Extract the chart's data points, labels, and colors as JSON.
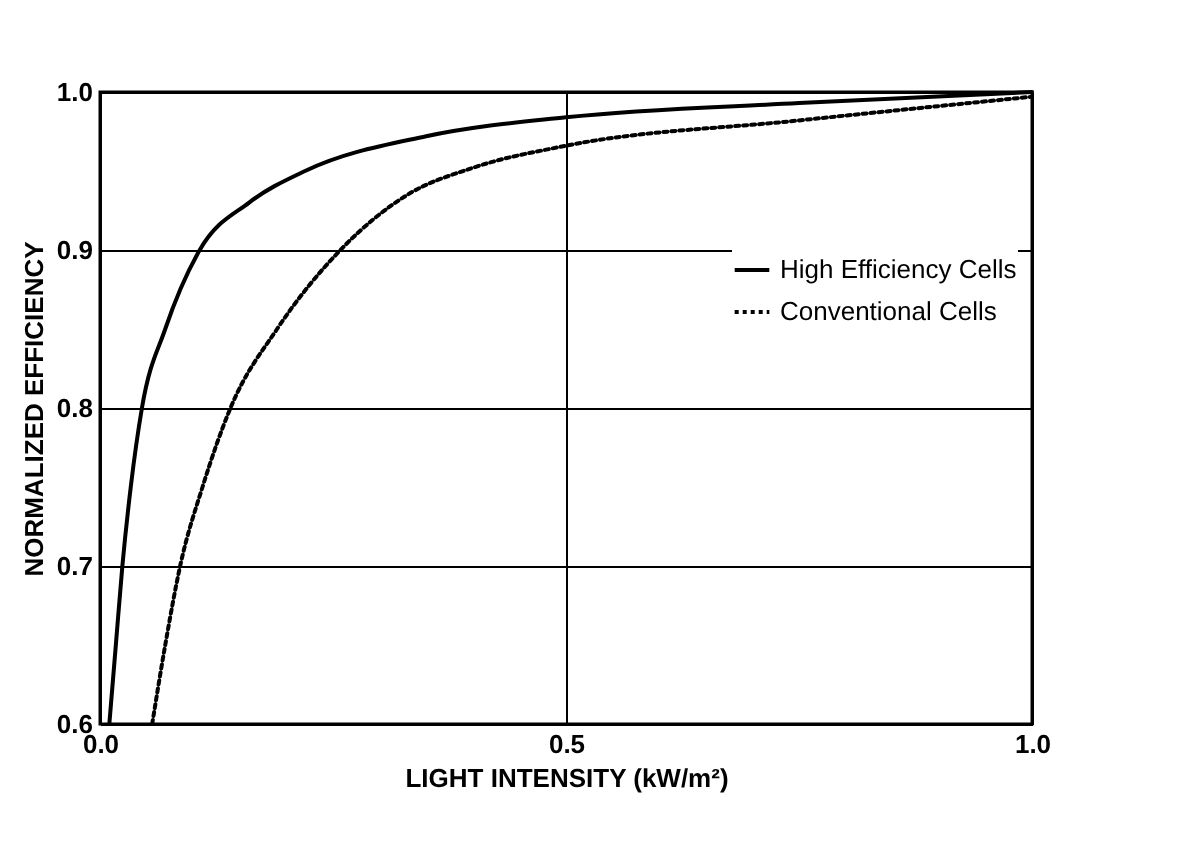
{
  "chart_data": {
    "type": "line",
    "xlabel": "LIGHT INTENSITY (kW/m²)",
    "ylabel": "NORMALIZED EFFICIENCY",
    "xlim": [
      0,
      1
    ],
    "ylim": [
      0.6,
      1
    ],
    "xticks": [
      {
        "value": 0,
        "label": "0.0"
      },
      {
        "value": 0.5,
        "label": "0.5"
      },
      {
        "value": 1,
        "label": "1.0"
      }
    ],
    "yticks": [
      0.6,
      0.7,
      0.8,
      0.9,
      {
        "value": 1,
        "label": "1.0"
      }
    ],
    "grid": true,
    "legend": "right",
    "series": [
      {
        "name": "High Efficiency Cells",
        "color": "#000000",
        "line_style": "solid",
        "x": [
          0.01,
          0.017,
          0.024,
          0.033,
          0.045,
          0.07,
          0.107,
          0.16,
          0.22,
          0.35,
          0.5,
          0.75,
          1.0
        ],
        "values": [
          0.6,
          0.65,
          0.7,
          0.75,
          0.8,
          0.85,
          0.9,
          0.93,
          0.95,
          0.972,
          0.984,
          0.993,
          1.0
        ]
      },
      {
        "name": "Conventional Cells",
        "color": "#000000",
        "line_style": "dotted",
        "x": [
          0.056,
          0.07,
          0.086,
          0.11,
          0.14,
          0.19,
          0.258,
          0.33,
          0.4,
          0.5,
          0.75,
          1.0
        ],
        "values": [
          0.6,
          0.65,
          0.7,
          0.75,
          0.8,
          0.85,
          0.9,
          0.935,
          0.952,
          0.966,
          0.982,
          0.997
        ]
      }
    ]
  }
}
